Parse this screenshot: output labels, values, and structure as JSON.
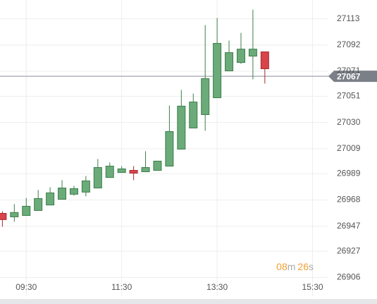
{
  "chart_data": {
    "type": "candlestick",
    "x": [
      "09:00",
      "09:15",
      "09:30",
      "09:45",
      "10:00",
      "10:15",
      "10:30",
      "10:45",
      "11:00",
      "11:15",
      "11:30",
      "11:45",
      "12:00",
      "12:15",
      "12:30",
      "12:45",
      "13:00",
      "13:15",
      "13:30",
      "13:45",
      "14:00",
      "14:15",
      "14:30"
    ],
    "open": [
      26957.3,
      26954.5,
      26955.6,
      26959.6,
      26964.0,
      26968.6,
      26972.6,
      26974.3,
      26977.6,
      26986.0,
      26990.0,
      26991.7,
      26990.6,
      26991.7,
      26995.1,
      27008.7,
      27025.6,
      27036.3,
      27049.8,
      27071.3,
      27078.0,
      27083.1,
      27086.5
    ],
    "high": [
      26959.0,
      26964.7,
      26969.7,
      26976.0,
      26978.2,
      26983.8,
      26979.3,
      26987.2,
      27000.8,
      26998.0,
      26995.1,
      26995.1,
      27007.0,
      26999.1,
      27043.6,
      27056.0,
      27053.2,
      27107.9,
      27113.6,
      27095.5,
      27101.7,
      27120.3,
      27086.5
    ],
    "low": [
      26946.6,
      26950.6,
      26955.6,
      26959.6,
      26964.0,
      26968.6,
      26971.4,
      26970.9,
      26977.6,
      26986.0,
      26990.0,
      26983.8,
      26990.6,
      26991.7,
      26995.1,
      27008.7,
      27025.6,
      27023.3,
      27049.8,
      27071.3,
      27076.9,
      27064.5,
      27061.1
    ],
    "close": [
      26952.3,
      26958.0,
      26963.0,
      26969.2,
      26973.7,
      26977.6,
      26977.1,
      26983.3,
      26994.0,
      26995.1,
      26992.9,
      26989.5,
      26994.0,
      26999.1,
      27022.8,
      27043.1,
      27046.4,
      27065.1,
      27093.3,
      27085.9,
      27088.7,
      27088.7,
      27073.0
    ],
    "up_color": "#6aab79",
    "down_color": "#d9434a",
    "xlim": [
      "08:57",
      "15:49"
    ],
    "xticks": [
      "09:30",
      "11:30",
      "13:30",
      "15:30"
    ],
    "ylim": [
      26891,
      27128
    ],
    "yticks": [
      27113,
      27092,
      27071,
      27051,
      27030,
      27009,
      26989,
      26968,
      26947,
      26927,
      26906
    ],
    "current_price": 27067,
    "grid": true
  },
  "countdown": {
    "minutes": "08",
    "minutes_unit": "m",
    "seconds": "26",
    "seconds_unit": "s"
  }
}
